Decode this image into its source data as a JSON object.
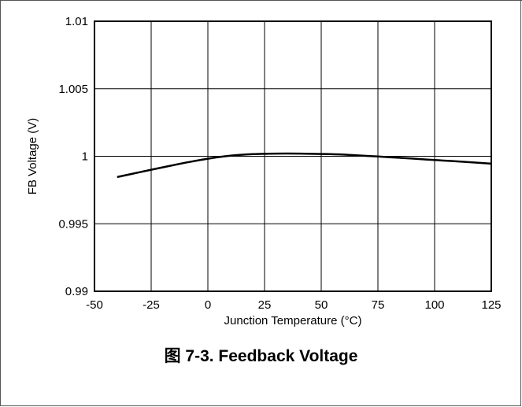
{
  "chart_data": {
    "type": "line",
    "title": "图 7-3. Feedback Voltage",
    "xlabel": "Junction Temperature (°C)",
    "ylabel": "FB Voltage (V)",
    "xlim": [
      -50,
      125
    ],
    "ylim": [
      0.99,
      1.01
    ],
    "x_ticks": [
      "-50",
      "-25",
      "0",
      "25",
      "50",
      "75",
      "100",
      "125"
    ],
    "y_ticks": [
      "1.01",
      "1.005",
      "1",
      "0.995",
      "0.99"
    ],
    "grid": true,
    "legend": "none",
    "series": [
      {
        "x": [
          -40,
          -30,
          -20,
          -10,
          0,
          10,
          20,
          30,
          40,
          50,
          60,
          75,
          90,
          100,
          110,
          125
        ],
        "y": [
          0.99846,
          0.99882,
          0.99918,
          0.99952,
          0.99982,
          1.00004,
          1.00016,
          1.0002,
          1.0002,
          1.00017,
          1.00012,
          0.99998,
          0.99983,
          0.99972,
          0.99962,
          0.99945
        ]
      }
    ],
    "color": "#000000"
  }
}
